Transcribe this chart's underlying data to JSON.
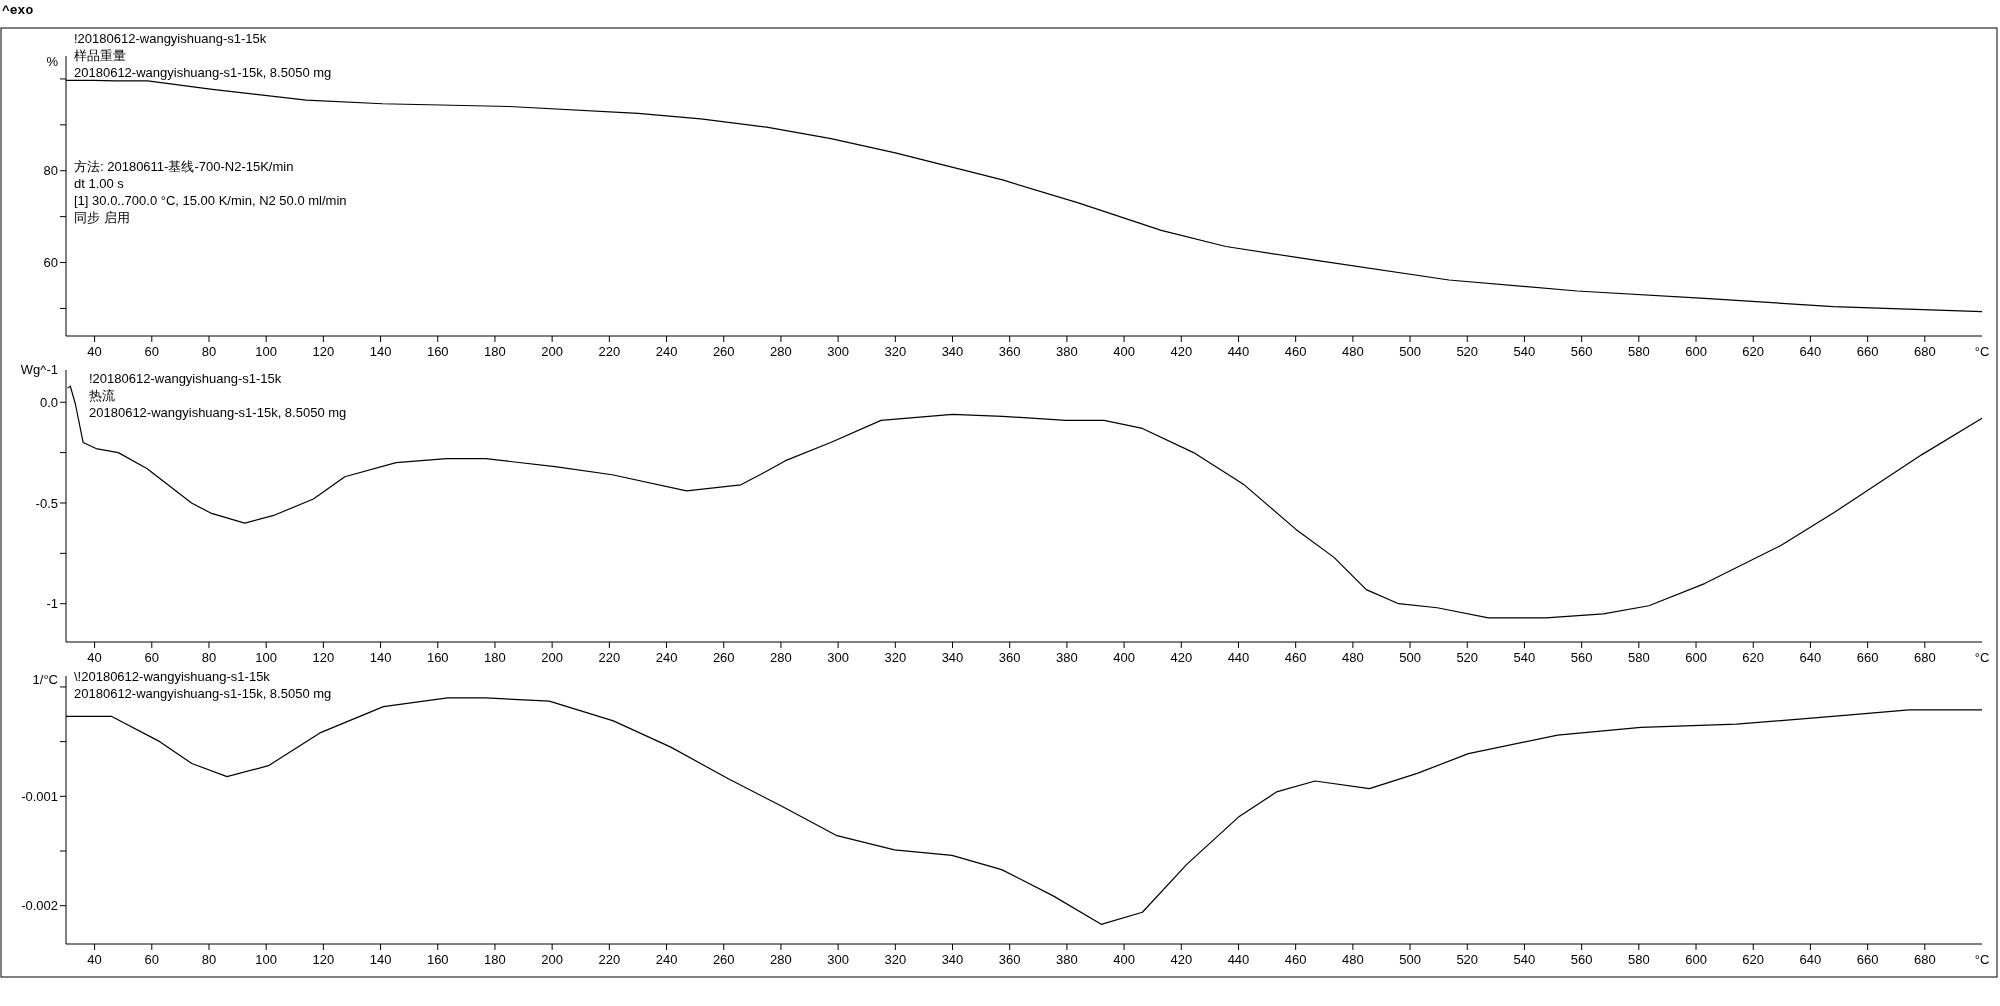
{
  "chart_data": [
    {
      "type": "line",
      "title": "^exo",
      "color": "#000000",
      "xlabel": "°C",
      "ylabel": "%",
      "x": [
        30,
        33,
        40,
        47,
        58.6,
        80.5,
        114,
        140.7,
        185,
        230,
        252,
        275,
        297.5,
        320,
        357.5,
        384,
        413,
        435.6,
        469,
        513.6,
        558.4,
        603,
        648,
        700
      ],
      "values": [
        99.7,
        99.7,
        99.7,
        99.6,
        99.6,
        97.8,
        95.4,
        94.6,
        94.0,
        92.5,
        91.3,
        89.5,
        87.0,
        83.9,
        78.0,
        73.0,
        67.0,
        63.5,
        60.3,
        56.2,
        53.8,
        52.2,
        50.4,
        49.3
      ],
      "xlim": [
        30,
        700
      ],
      "xticks": [
        40,
        60,
        80,
        100,
        120,
        140,
        160,
        180,
        200,
        220,
        240,
        260,
        280,
        300,
        320,
        340,
        360,
        380,
        400,
        420,
        440,
        460,
        480,
        500,
        520,
        540,
        560,
        580,
        600,
        620,
        640,
        660,
        680
      ],
      "ylim": [
        44,
        105
      ],
      "yticks": [
        {
          "value": 100,
          "label": null
        },
        {
          "value": 90,
          "label": null
        },
        80,
        {
          "value": 70,
          "label": null
        },
        60,
        {
          "value": 50,
          "label": null
        }
      ],
      "annotations": [
        "!20180612-wangyishuang-s1-15k",
        "样品重量",
        "20180612-wangyishuang-s1-15k, 8.5050 mg",
        "方法: 20180611-基线-700-N2-15K/min",
        "dt 1.00 s",
        "[1] 30.0..700.0 °C, 15.00 K/min,  N2 50.0 ml/min",
        "同步 启用"
      ]
    },
    {
      "type": "line",
      "color": "#000000",
      "xlabel": "°C",
      "ylabel": "Wg^-1",
      "x": [
        30.5,
        31.5,
        33.3,
        36,
        40.5,
        48.3,
        58.4,
        73.9,
        80.6,
        92.5,
        103,
        116.5,
        127.5,
        145.4,
        163,
        176.8,
        201,
        221,
        247,
        266,
        274,
        281.6,
        297.4,
        315,
        340,
        357.5,
        379.7,
        393,
        406.4,
        424.3,
        442,
        460,
        473.4,
        484.7,
        496,
        509.5,
        527.4,
        547.5,
        567.6,
        583.5,
        603,
        629.8,
        648,
        679,
        700
      ],
      "values": [
        0.07,
        0.08,
        -0.01,
        -0.2,
        -0.23,
        -0.25,
        -0.33,
        -0.5,
        -0.55,
        -0.6,
        -0.56,
        -0.48,
        -0.37,
        -0.3,
        -0.28,
        -0.28,
        -0.32,
        -0.36,
        -0.44,
        -0.41,
        -0.35,
        -0.29,
        -0.2,
        -0.09,
        -0.06,
        -0.07,
        -0.09,
        -0.09,
        -0.13,
        -0.25,
        -0.41,
        -0.63,
        -0.77,
        -0.93,
        -1.0,
        -1.02,
        -1.07,
        -1.07,
        -1.05,
        -1.01,
        -0.9,
        -0.71,
        -0.55,
        -0.26,
        -0.08
      ],
      "xlim": [
        30,
        700
      ],
      "xticks": [
        40,
        60,
        80,
        100,
        120,
        140,
        160,
        180,
        200,
        220,
        240,
        260,
        280,
        300,
        320,
        340,
        360,
        380,
        400,
        420,
        440,
        460,
        480,
        500,
        520,
        540,
        560,
        580,
        600,
        620,
        640,
        660,
        680
      ],
      "ylim": [
        -1.19,
        0.16
      ],
      "yticks": [
        "0.0",
        {
          "value": -0.25,
          "label": null
        },
        -0.5,
        {
          "value": -0.75,
          "label": null
        },
        -1.0
      ],
      "annotations": [
        "!20180612-wangyishuang-s1-15k",
        "热流",
        "20180612-wangyishuang-s1-15k, 8.5050 mg"
      ]
    },
    {
      "type": "line",
      "color": "#000000",
      "xlabel": "°C",
      "ylabel": "1/°C",
      "x": [
        30,
        46,
        62.8,
        74,
        86.3,
        100.8,
        118.8,
        141,
        163.4,
        176.8,
        199,
        221.4,
        241.5,
        261.6,
        279.5,
        299.6,
        319.7,
        339.8,
        357.2,
        375.2,
        392,
        406.4,
        422,
        440,
        453.3,
        466.8,
        485.8,
        502.5,
        520.4,
        551.6,
        580.7,
        614.2,
        647.7,
        674.5,
        700
      ],
      "values": [
        -0.00027,
        -0.00027,
        -0.0005,
        -0.0007,
        -0.00082,
        -0.00072,
        -0.00042,
        -0.00018,
        -0.0001,
        -0.0001,
        -0.00013,
        -0.00031,
        -0.00055,
        -0.00084,
        -0.00108,
        -0.00136,
        -0.00149,
        -0.00154,
        -0.00167,
        -0.00191,
        -0.00217,
        -0.00206,
        -0.00162,
        -0.00119,
        -0.00096,
        -0.00086,
        -0.00093,
        -0.00079,
        -0.00061,
        -0.00044,
        -0.00037,
        -0.00034,
        -0.00027,
        -0.00021,
        -0.00021
      ],
      "xlim": [
        30,
        700
      ],
      "xticks": [
        40,
        60,
        80,
        100,
        120,
        140,
        160,
        180,
        200,
        220,
        240,
        260,
        280,
        300,
        320,
        340,
        360,
        380,
        400,
        420,
        440,
        460,
        480,
        500,
        520,
        540,
        560,
        580,
        600,
        620,
        640,
        660,
        680
      ],
      "ylim": [
        -0.00235,
        0.0001
      ],
      "yticks": [
        {
          "value": 0,
          "label": null
        },
        {
          "value": -0.0005,
          "label": null
        },
        -0.001,
        {
          "value": -0.0015,
          "label": null
        },
        -0.002
      ],
      "annotations": [
        "\\!20180612-wangyishuang-s1-15k",
        "20180612-wangyishuang-s1-15k, 8.5050 mg"
      ]
    }
  ]
}
